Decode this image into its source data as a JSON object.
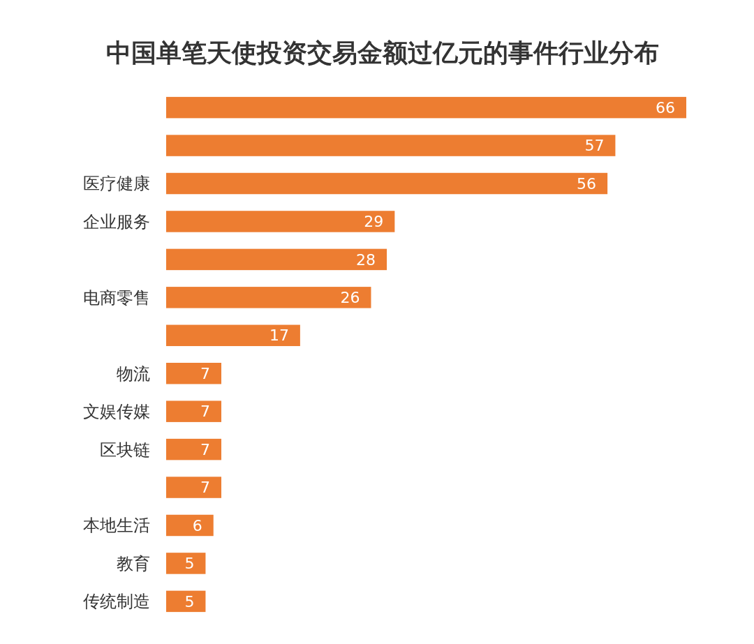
{
  "chart_data": {
    "type": "bar",
    "orientation": "horizontal",
    "title": "中国单笔天使投资交易金额过亿元的事件行业分布",
    "categories": [
      null,
      null,
      "医疗健康",
      "企业服务",
      null,
      "电商零售",
      null,
      "物流",
      "文娱传媒",
      "区块链",
      null,
      "本地生活",
      "教育",
      "传统制造"
    ],
    "values": [
      66,
      57,
      56,
      29,
      28,
      26,
      17,
      7,
      7,
      7,
      7,
      6,
      5,
      5
    ],
    "color": "#ed7d31",
    "data_labels": true
  }
}
